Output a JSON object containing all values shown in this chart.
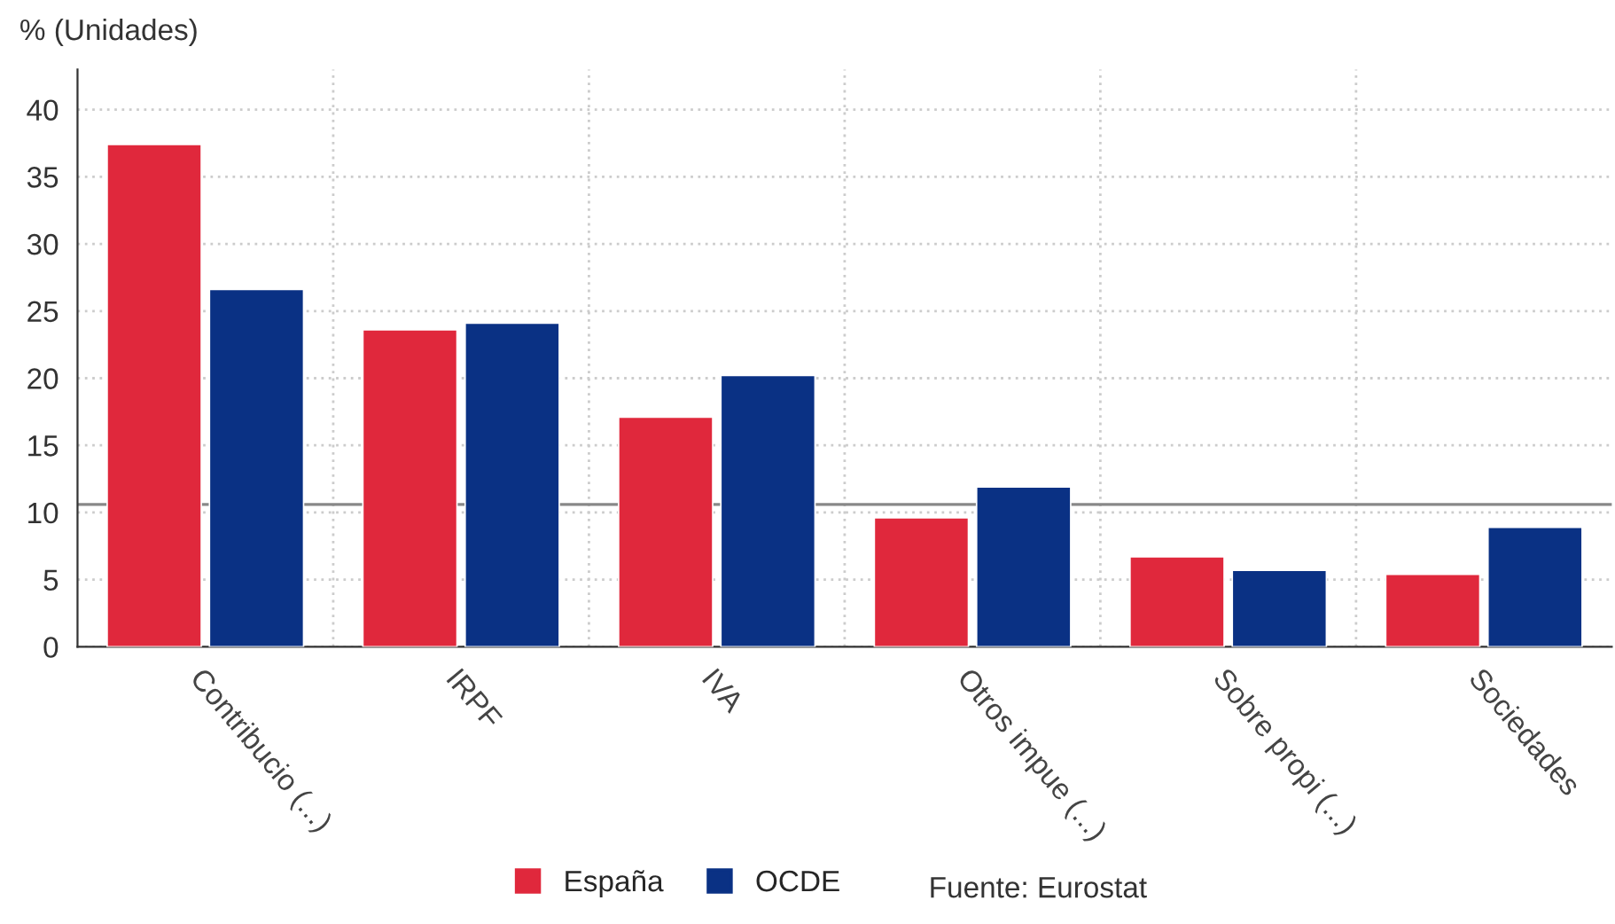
{
  "chart_data": {
    "type": "bar",
    "ylabel": "% (Unidades)",
    "categories": [
      "Contribucio (...)",
      "IRPF",
      "IVA",
      "Otros impue (...)",
      "Sobre propi (...)",
      "Sociedades"
    ],
    "series": [
      {
        "name": "España",
        "color": "#e0283c",
        "values": [
          37.4,
          23.6,
          17.1,
          9.6,
          6.7,
          5.4
        ]
      },
      {
        "name": "OCDE",
        "color": "#0a3184",
        "values": [
          26.6,
          24.1,
          20.2,
          11.9,
          5.7,
          8.9
        ]
      }
    ],
    "ylim": [
      0,
      43
    ],
    "yticks": [
      0,
      5,
      10,
      15,
      20,
      25,
      30,
      35,
      40
    ],
    "ref_lines": [
      {
        "axis": "y",
        "value": 10.6,
        "color": "#888888"
      }
    ],
    "grid": true,
    "legend": "bottom",
    "annotations": [
      "Fuente: Eurostat"
    ]
  }
}
